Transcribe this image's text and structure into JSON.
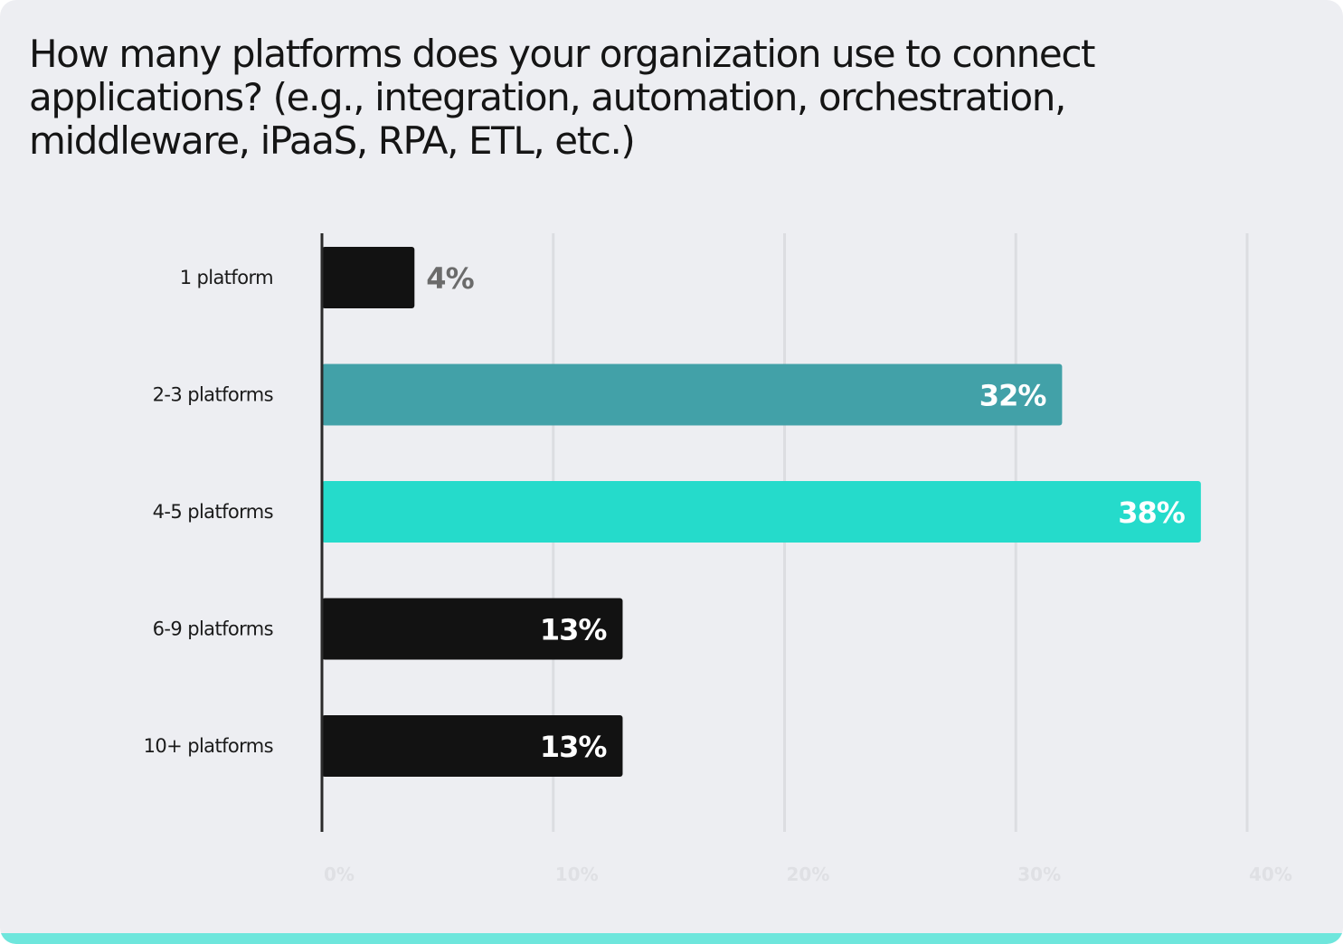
{
  "chart_data": {
    "type": "bar",
    "orientation": "horizontal",
    "title": "How many platforms does your organization use to connect applications? (e.g., integration, automation, orchestration, middleware, iPaaS, RPA, ETL, etc.)",
    "categories": [
      "1 platform",
      "2-3 platforms",
      "4-5 platforms",
      "6-9 platforms",
      "10+ platforms"
    ],
    "values": [
      4,
      32,
      38,
      13,
      13
    ],
    "value_labels": [
      "4%",
      "32%",
      "38%",
      "13%",
      "13%"
    ],
    "bar_colors": [
      "#121212",
      "#42a1a8",
      "#25dbcb",
      "#121212",
      "#121212"
    ],
    "xlim": [
      0,
      40
    ],
    "x_ticks": [
      0,
      10,
      20,
      30,
      40
    ],
    "x_tick_labels": [
      "0%",
      "10%",
      "20%",
      "30%",
      "40%"
    ],
    "grid": true,
    "legend": "none"
  },
  "colors": {
    "background": "#edeef2",
    "accent": "#6ee6dc",
    "gridline": "#dcdde1",
    "axis": "#2a2a2a",
    "value_label_inside": "#ffffff",
    "value_label_outside": "#6b6b6b"
  }
}
